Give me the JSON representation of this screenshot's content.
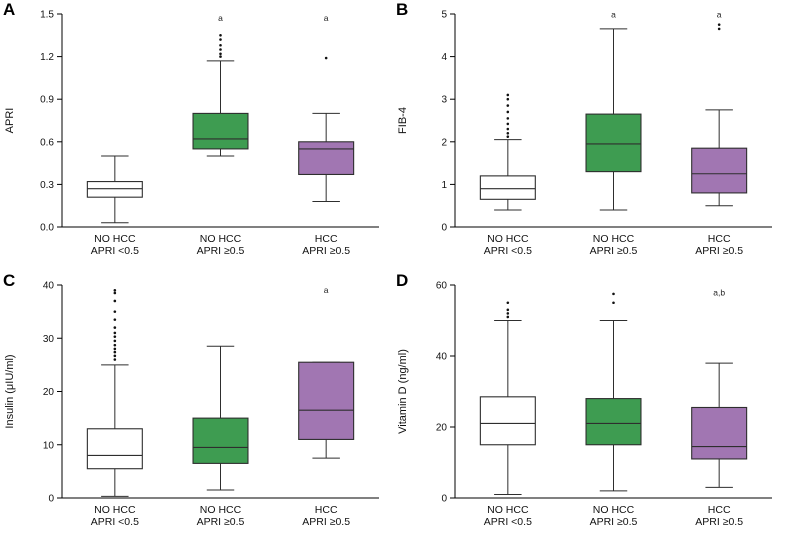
{
  "figure": {
    "background": "#ffffff",
    "box_stroke": "#2e2e2e"
  },
  "chart_data": [
    {
      "type": "box",
      "panel": "A",
      "ylabel": "APRI",
      "ylim": [
        0,
        1.5
      ],
      "yticks": [
        {
          "v": 0,
          "label": "0.0"
        },
        {
          "v": 0.3,
          "label": "0.3"
        },
        {
          "v": 0.6,
          "label": "0.6"
        },
        {
          "v": 0.9,
          "label": "0.9"
        },
        {
          "v": 1.2,
          "label": "1.2"
        },
        {
          "v": 1.5,
          "label": "1.5"
        }
      ],
      "categories": [
        [
          "NO HCC",
          "APRI <0.5"
        ],
        [
          "NO HCC",
          "APRI ≥0.5"
        ],
        [
          "HCC",
          "APRI ≥0.5"
        ]
      ],
      "colors": [
        "#ffffff",
        "#3e9c51",
        "#a176b2"
      ],
      "boxes": [
        {
          "low": 0.03,
          "q1": 0.21,
          "median": 0.27,
          "q3": 0.32,
          "high": 0.5,
          "outliers": []
        },
        {
          "low": 0.5,
          "q1": 0.55,
          "median": 0.62,
          "q3": 0.8,
          "high": 1.17,
          "outliers": [
            1.2,
            1.22,
            1.25,
            1.28,
            1.32,
            1.35
          ]
        },
        {
          "low": 0.18,
          "q1": 0.37,
          "median": 0.55,
          "q3": 0.6,
          "high": 0.8,
          "outliers": [
            1.19
          ]
        }
      ],
      "annotations": [
        {
          "group": 1,
          "text": "a",
          "y": 1.45
        },
        {
          "group": 2,
          "text": "a",
          "y": 1.45
        }
      ]
    },
    {
      "type": "box",
      "panel": "B",
      "ylabel": "FIB-4",
      "ylim": [
        0,
        5
      ],
      "yticks": [
        {
          "v": 0,
          "label": "0"
        },
        {
          "v": 1,
          "label": "1"
        },
        {
          "v": 2,
          "label": "2"
        },
        {
          "v": 3,
          "label": "3"
        },
        {
          "v": 4,
          "label": "4"
        },
        {
          "v": 5,
          "label": "5"
        }
      ],
      "categories": [
        [
          "NO HCC",
          "APRI <0.5"
        ],
        [
          "NO HCC",
          "APRI ≥0.5"
        ],
        [
          "HCC",
          "APRI ≥0.5"
        ]
      ],
      "colors": [
        "#ffffff",
        "#3e9c51",
        "#a176b2"
      ],
      "boxes": [
        {
          "low": 0.4,
          "q1": 0.65,
          "median": 0.9,
          "q3": 1.2,
          "high": 2.05,
          "outliers": [
            2.12,
            2.2,
            2.3,
            2.42,
            2.55,
            2.7,
            2.85,
            3.0,
            3.1
          ]
        },
        {
          "low": 0.4,
          "q1": 1.3,
          "median": 1.95,
          "q3": 2.65,
          "high": 4.65,
          "outliers": []
        },
        {
          "low": 0.5,
          "q1": 0.8,
          "median": 1.25,
          "q3": 1.85,
          "high": 2.75,
          "outliers": [
            4.65,
            4.75
          ]
        }
      ],
      "annotations": [
        {
          "group": 1,
          "text": "a",
          "y": 4.92
        },
        {
          "group": 2,
          "text": "a",
          "y": 4.92
        }
      ]
    },
    {
      "type": "box",
      "panel": "C",
      "ylabel": "Insulin (μIU/ml)",
      "ylim": [
        0,
        40
      ],
      "yticks": [
        {
          "v": 0,
          "label": "0"
        },
        {
          "v": 10,
          "label": "10"
        },
        {
          "v": 20,
          "label": "20"
        },
        {
          "v": 30,
          "label": "30"
        },
        {
          "v": 40,
          "label": "40"
        }
      ],
      "categories": [
        [
          "NO HCC",
          "APRI <0.5"
        ],
        [
          "NO HCC",
          "APRI ≥0.5"
        ],
        [
          "HCC",
          "APRI ≥0.5"
        ]
      ],
      "colors": [
        "#ffffff",
        "#3e9c51",
        "#a176b2"
      ],
      "boxes": [
        {
          "low": 0.3,
          "q1": 5.5,
          "median": 8.0,
          "q3": 13.0,
          "high": 25.0,
          "outliers": [
            26,
            26.7,
            27.4,
            28,
            28.7,
            29.5,
            30.3,
            31,
            32,
            33.5,
            35,
            37,
            38.5,
            39
          ]
        },
        {
          "low": 1.5,
          "q1": 6.5,
          "median": 9.5,
          "q3": 15.0,
          "high": 28.5,
          "outliers": []
        },
        {
          "low": 7.5,
          "q1": 11.0,
          "median": 16.5,
          "q3": 25.5,
          "high": 25.5,
          "outliers": []
        }
      ],
      "annotations": [
        {
          "group": 2,
          "text": "a",
          "y": 38.5
        }
      ]
    },
    {
      "type": "box",
      "panel": "D",
      "ylabel": "Vitamin D (ng/ml)",
      "ylim": [
        0,
        60
      ],
      "yticks": [
        {
          "v": 0,
          "label": "0"
        },
        {
          "v": 20,
          "label": "20"
        },
        {
          "v": 40,
          "label": "40"
        },
        {
          "v": 60,
          "label": "60"
        }
      ],
      "categories": [
        [
          "NO HCC",
          "APRI <0.5"
        ],
        [
          "NO HCC",
          "APRI ≥0.5"
        ],
        [
          "HCC",
          "APRI ≥0.5"
        ]
      ],
      "colors": [
        "#ffffff",
        "#3e9c51",
        "#a176b2"
      ],
      "boxes": [
        {
          "low": 1,
          "q1": 15,
          "median": 21,
          "q3": 28.5,
          "high": 50,
          "outliers": [
            51,
            52,
            53,
            55
          ]
        },
        {
          "low": 2,
          "q1": 15,
          "median": 21,
          "q3": 28,
          "high": 50,
          "outliers": [
            55,
            57.5
          ]
        },
        {
          "low": 3,
          "q1": 11,
          "median": 14.5,
          "q3": 25.5,
          "high": 38,
          "outliers": []
        }
      ],
      "annotations": [
        {
          "group": 2,
          "text": "a,b",
          "y": 57
        }
      ]
    }
  ]
}
